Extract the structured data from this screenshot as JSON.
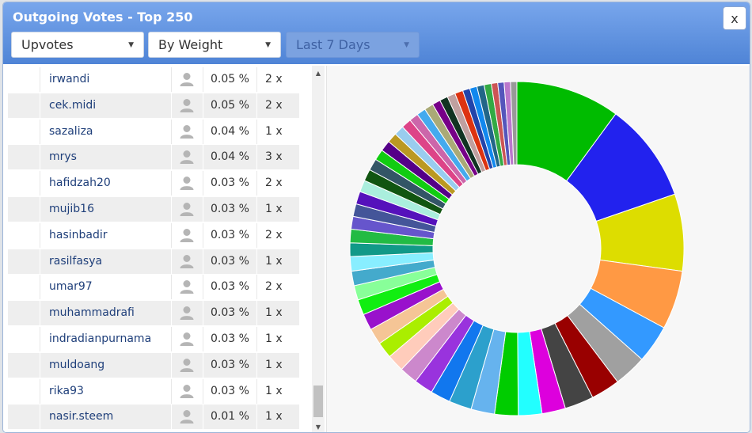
{
  "dialog": {
    "title": "Outgoing Votes - Top 250",
    "close_label": "x"
  },
  "filters": {
    "vote_type": "Upvotes",
    "sort_by": "By Weight",
    "period": "Last 7 Days"
  },
  "rows": [
    {
      "name": "irwandi",
      "percent": "0.05 %",
      "count": "2 x"
    },
    {
      "name": "cek.midi",
      "percent": "0.05 %",
      "count": "2 x"
    },
    {
      "name": "sazaliza",
      "percent": "0.04 %",
      "count": "1 x"
    },
    {
      "name": "mrys",
      "percent": "0.04 %",
      "count": "3 x"
    },
    {
      "name": "hafidzah20",
      "percent": "0.03 %",
      "count": "2 x"
    },
    {
      "name": "mujib16",
      "percent": "0.03 %",
      "count": "1 x"
    },
    {
      "name": "hasinbadir",
      "percent": "0.03 %",
      "count": "2 x"
    },
    {
      "name": "rasilfasya",
      "percent": "0.03 %",
      "count": "1 x"
    },
    {
      "name": "umar97",
      "percent": "0.03 %",
      "count": "2 x"
    },
    {
      "name": "muhammadrafi",
      "percent": "0.03 %",
      "count": "1 x"
    },
    {
      "name": "indradianpurnama",
      "percent": "0.03 %",
      "count": "1 x"
    },
    {
      "name": "muldoang",
      "percent": "0.03 %",
      "count": "1 x"
    },
    {
      "name": "rika93",
      "percent": "0.03 %",
      "count": "1 x"
    },
    {
      "name": "nasir.steem",
      "percent": "0.01 %",
      "count": "1 x"
    }
  ],
  "chart_data": {
    "type": "pie",
    "donut": true,
    "legend": "none",
    "slices": [
      {
        "value": 11.5,
        "color": "#00bb00"
      },
      {
        "value": 11.0,
        "color": "#2222ee"
      },
      {
        "value": 8.5,
        "color": "#dddd00"
      },
      {
        "value": 6.5,
        "color": "#ff9944"
      },
      {
        "value": 4.2,
        "color": "#3399ff"
      },
      {
        "value": 3.6,
        "color": "#a0a0a0"
      },
      {
        "value": 3.2,
        "color": "#990000"
      },
      {
        "value": 3.2,
        "color": "#444444"
      },
      {
        "value": 2.6,
        "color": "#dd00dd"
      },
      {
        "value": 2.6,
        "color": "#22ffff"
      },
      {
        "value": 2.6,
        "color": "#00cc00"
      },
      {
        "value": 2.6,
        "color": "#66b3ee"
      },
      {
        "value": 2.5,
        "color": "#2ca0cc"
      },
      {
        "value": 2.2,
        "color": "#1177ee"
      },
      {
        "value": 2.1,
        "color": "#9933dd"
      },
      {
        "value": 2.0,
        "color": "#cc88cc"
      },
      {
        "value": 1.9,
        "color": "#ffccbb"
      },
      {
        "value": 1.8,
        "color": "#aaee00"
      },
      {
        "value": 1.8,
        "color": "#f5c596"
      },
      {
        "value": 1.8,
        "color": "#9911cc"
      },
      {
        "value": 1.7,
        "color": "#11ee11"
      },
      {
        "value": 1.6,
        "color": "#88ff99"
      },
      {
        "value": 1.6,
        "color": "#44aacc"
      },
      {
        "value": 1.6,
        "color": "#88eeff"
      },
      {
        "value": 1.5,
        "color": "#119988"
      },
      {
        "value": 1.5,
        "color": "#22bb44"
      },
      {
        "value": 1.4,
        "color": "#6655cc"
      },
      {
        "value": 1.4,
        "color": "#445599"
      },
      {
        "value": 1.4,
        "color": "#5511bb"
      },
      {
        "value": 1.3,
        "color": "#aaeedd"
      },
      {
        "value": 1.3,
        "color": "#115511"
      },
      {
        "value": 1.3,
        "color": "#335566"
      },
      {
        "value": 1.2,
        "color": "#11cc11"
      },
      {
        "value": 1.2,
        "color": "#550088"
      },
      {
        "value": 1.1,
        "color": "#bb9922"
      },
      {
        "value": 1.1,
        "color": "#99ccee"
      },
      {
        "value": 1.1,
        "color": "#dd4488"
      },
      {
        "value": 1.0,
        "color": "#cc66aa"
      },
      {
        "value": 1.0,
        "color": "#44aaee"
      },
      {
        "value": 1.0,
        "color": "#aaaa77"
      },
      {
        "value": 0.9,
        "color": "#770088"
      },
      {
        "value": 0.9,
        "color": "#113322"
      },
      {
        "value": 0.9,
        "color": "#c0a0a0"
      },
      {
        "value": 0.9,
        "color": "#dd3311"
      },
      {
        "value": 0.8,
        "color": "#2244aa"
      },
      {
        "value": 0.8,
        "color": "#1188ee"
      },
      {
        "value": 0.8,
        "color": "#226688"
      },
      {
        "value": 0.8,
        "color": "#33aa44"
      },
      {
        "value": 0.7,
        "color": "#cc5555"
      },
      {
        "value": 0.7,
        "color": "#5555bb"
      },
      {
        "value": 0.7,
        "color": "#bb77cc"
      },
      {
        "value": 0.7,
        "color": "#999999"
      }
    ]
  }
}
